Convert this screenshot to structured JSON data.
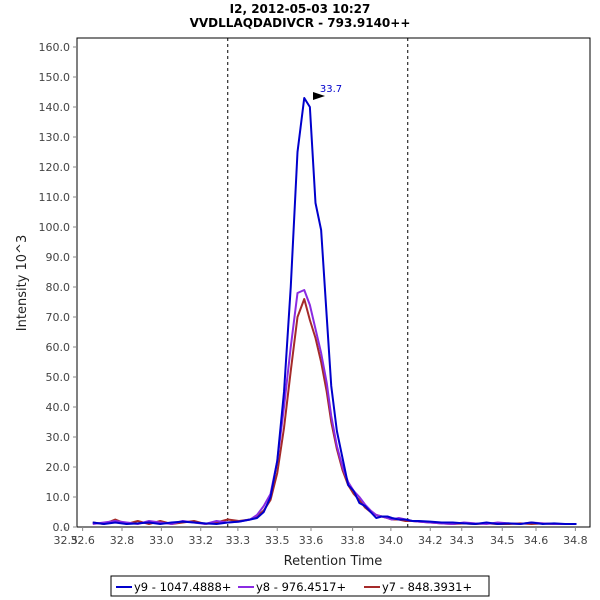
{
  "chart_data": {
    "type": "line",
    "title": "I2, 2012-05-03 10:27",
    "subtitle": "VVDLLAQDADIVCR - 793.9140++",
    "xlabel": "Retention Time",
    "ylabel": "Intensity 10^3",
    "xlim": [
      32.6,
      34.88
    ],
    "ylim": [
      0,
      163
    ],
    "x_ticks": [
      "32.5",
      "32.6",
      "32.8",
      "33.0",
      "33.2",
      "33.3",
      "33.5",
      "33.6",
      "33.8",
      "34.0",
      "34.2",
      "34.3",
      "34.5",
      "34.6",
      "34.8"
    ],
    "x_tick_values": [
      32.55,
      32.625,
      32.8,
      32.975,
      33.15,
      33.315,
      33.49,
      33.64,
      33.825,
      33.995,
      34.17,
      34.31,
      34.49,
      34.64,
      34.815
    ],
    "y_ticks": [
      "0.0",
      "10.0",
      "20.0",
      "30.0",
      "40.0",
      "50.0",
      "60.0",
      "70.0",
      "80.0",
      "90.0",
      "100.0",
      "110.0",
      "120.0",
      "130.0",
      "140.0",
      "150.0",
      "160.0"
    ],
    "y_tick_values": [
      0,
      10,
      20,
      30,
      40,
      50,
      60,
      70,
      80,
      90,
      100,
      110,
      120,
      130,
      140,
      150,
      160
    ],
    "vertical_markers": [
      33.27,
      34.07
    ],
    "peak_annotation": {
      "label": "33.7",
      "x": 33.72,
      "y": 143.0,
      "color": "#0000cc"
    },
    "legend_placement": "bottom",
    "series": [
      {
        "name": "y9 - 1047.4888+",
        "color": "#0000cc",
        "x": [
          32.67,
          32.72,
          32.77,
          32.82,
          32.87,
          32.92,
          32.97,
          33.02,
          33.07,
          33.12,
          33.17,
          33.22,
          33.27,
          33.32,
          33.37,
          33.4,
          33.43,
          33.46,
          33.49,
          33.52,
          33.55,
          33.58,
          33.61,
          33.635,
          33.66,
          33.685,
          33.71,
          33.73,
          33.755,
          33.78,
          33.805,
          33.83,
          33.855,
          33.88,
          33.905,
          33.93,
          33.955,
          33.98,
          34.0,
          34.03,
          34.06,
          34.09,
          34.12,
          34.17,
          34.22,
          34.27,
          34.32,
          34.37,
          34.42,
          34.47,
          34.52,
          34.57,
          34.62,
          34.67,
          34.72,
          34.77,
          34.82
        ],
        "y": [
          1.5,
          1.0,
          1.5,
          1.0,
          1.2,
          1.5,
          1.0,
          1.5,
          1.8,
          1.5,
          1.2,
          1.0,
          1.5,
          1.8,
          2.5,
          3.0,
          5.0,
          10.0,
          22.0,
          45.0,
          80.0,
          125.0,
          143.0,
          140.0,
          108.0,
          99.0,
          70.0,
          47.0,
          32.0,
          23.0,
          14.0,
          12.0,
          8.0,
          7.0,
          5.0,
          3.0,
          3.5,
          3.5,
          3.0,
          2.5,
          2.5,
          2.0,
          2.0,
          1.8,
          1.5,
          1.5,
          1.2,
          1.0,
          1.5,
          1.0,
          1.2,
          1.0,
          1.5,
          1.0,
          1.2,
          1.0,
          1.0
        ]
      },
      {
        "name": "y8 - 976.4517+",
        "color": "#8a2be2",
        "x": [
          32.67,
          32.72,
          32.77,
          32.82,
          32.87,
          32.92,
          32.97,
          33.02,
          33.07,
          33.12,
          33.17,
          33.22,
          33.27,
          33.32,
          33.37,
          33.4,
          33.43,
          33.46,
          33.49,
          33.52,
          33.55,
          33.58,
          33.61,
          33.635,
          33.66,
          33.685,
          33.71,
          33.73,
          33.755,
          33.78,
          33.805,
          33.83,
          33.855,
          33.88,
          33.905,
          33.93,
          33.955,
          33.98,
          34.0,
          34.03,
          34.06,
          34.09,
          34.12,
          34.17,
          34.22,
          34.27,
          34.32,
          34.37,
          34.42,
          34.47,
          34.52,
          34.57,
          34.62,
          34.67,
          34.72,
          34.77,
          34.82
        ],
        "y": [
          1.0,
          1.5,
          2.0,
          1.5,
          1.0,
          2.0,
          1.5,
          1.0,
          2.0,
          1.5,
          1.0,
          2.0,
          1.5,
          1.8,
          2.5,
          4.0,
          7.0,
          11.0,
          22.0,
          40.0,
          60.0,
          78.0,
          79.0,
          74.0,
          66.0,
          58.0,
          48.0,
          37.0,
          27.0,
          20.0,
          15.0,
          12.0,
          10.0,
          7.5,
          5.5,
          4.0,
          3.5,
          3.0,
          2.5,
          3.0,
          2.5,
          2.0,
          1.8,
          1.5,
          1.2,
          1.0,
          1.5,
          1.2,
          1.0,
          1.5,
          1.2,
          1.0,
          1.5,
          1.2,
          1.0,
          1.0,
          1.0
        ]
      },
      {
        "name": "y7 - 848.3931+",
        "color": "#a52a2a",
        "x": [
          32.67,
          32.72,
          32.77,
          32.82,
          32.87,
          32.92,
          32.97,
          33.02,
          33.07,
          33.12,
          33.17,
          33.22,
          33.27,
          33.32,
          33.37,
          33.4,
          33.43,
          33.46,
          33.49,
          33.52,
          33.55,
          33.58,
          33.61,
          33.635,
          33.66,
          33.685,
          33.71,
          33.73,
          33.755,
          33.78,
          33.805,
          33.83,
          33.855,
          33.88,
          33.905,
          33.93,
          33.955,
          33.98,
          34.0,
          34.03,
          34.06,
          34.09,
          34.12,
          34.17,
          34.22,
          34.27,
          34.32,
          34.37,
          34.42,
          34.47,
          34.52,
          34.57,
          34.62,
          34.67,
          34.72,
          34.77,
          34.82
        ],
        "y": [
          1.5,
          1.0,
          2.5,
          1.0,
          2.0,
          1.0,
          2.0,
          1.0,
          1.5,
          2.0,
          1.0,
          1.5,
          2.5,
          2.0,
          2.5,
          3.5,
          5.5,
          9.0,
          18.0,
          33.0,
          52.0,
          70.0,
          76.0,
          69.0,
          63.0,
          55.0,
          45.0,
          35.0,
          26.0,
          19.0,
          14.0,
          11.0,
          9.0,
          6.5,
          5.0,
          4.0,
          3.5,
          3.0,
          2.5,
          2.5,
          2.0,
          2.0,
          1.8,
          1.5,
          1.2,
          1.0,
          1.2,
          1.0,
          1.2,
          1.0,
          1.0,
          1.2,
          1.0,
          1.2,
          1.0,
          1.0,
          1.0
        ]
      }
    ]
  }
}
